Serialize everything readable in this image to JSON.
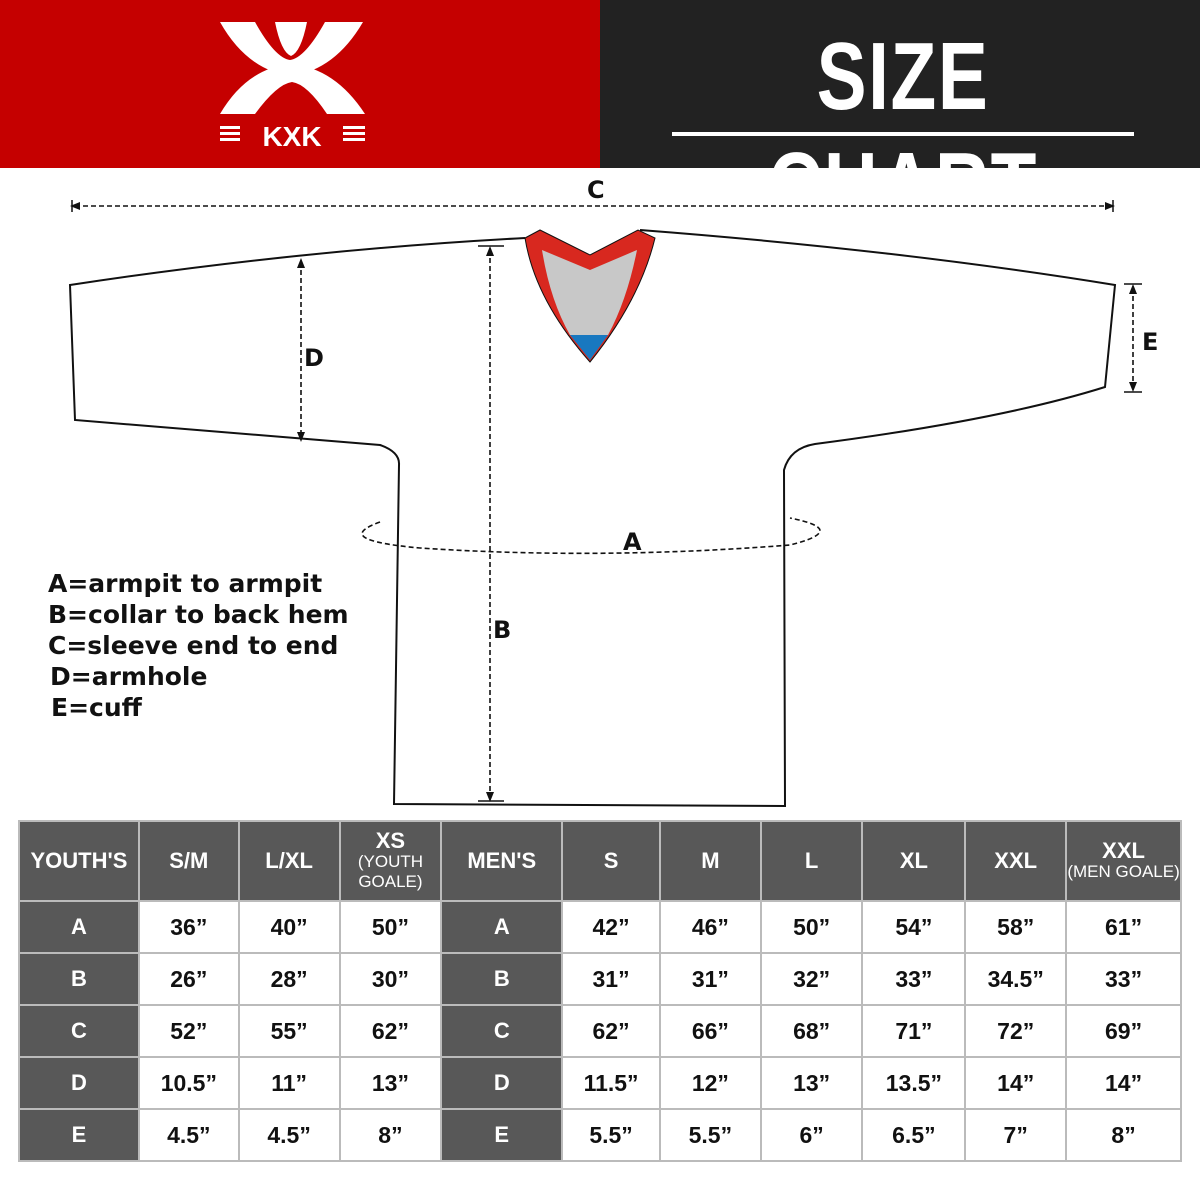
{
  "brand": {
    "logo_text": "KXK",
    "colors": {
      "red": "#c50000",
      "dark": "#222222",
      "table_header": "#585858"
    }
  },
  "title": "SIZE CHART",
  "diagram": {
    "labels": {
      "a": "A",
      "b": "B",
      "c": "C",
      "d": "D",
      "e": "E"
    }
  },
  "legend": [
    "A=armpit to armpit",
    "B=collar to back hem",
    "C=sleeve end to end",
    "D=armhole",
    "E=cuff"
  ],
  "table": {
    "youth": {
      "header": "YOUTH'S",
      "sizes": [
        {
          "main": "S/M",
          "sub": ""
        },
        {
          "main": "L/XL",
          "sub": ""
        },
        {
          "main": "XS",
          "sub": "(YOUTH GOALE)"
        }
      ],
      "rows": [
        {
          "label": "A",
          "values": [
            "36”",
            "40”",
            "50”"
          ]
        },
        {
          "label": "B",
          "values": [
            "26”",
            "28”",
            "30”"
          ]
        },
        {
          "label": "C",
          "values": [
            "52”",
            "55”",
            "62”"
          ]
        },
        {
          "label": "D",
          "values": [
            "10.5”",
            "11”",
            "13”"
          ]
        },
        {
          "label": "E",
          "values": [
            "4.5”",
            "4.5”",
            "8”"
          ]
        }
      ]
    },
    "men": {
      "header": "MEN'S",
      "sizes": [
        {
          "main": "S",
          "sub": ""
        },
        {
          "main": "M",
          "sub": ""
        },
        {
          "main": "L",
          "sub": ""
        },
        {
          "main": "XL",
          "sub": ""
        },
        {
          "main": "XXL",
          "sub": ""
        },
        {
          "main": "XXL",
          "sub": "(MEN GOALE)"
        }
      ],
      "rows": [
        {
          "label": "A",
          "values": [
            "42”",
            "46”",
            "50”",
            "54”",
            "58”",
            "61”"
          ]
        },
        {
          "label": "B",
          "values": [
            "31”",
            "31”",
            "32”",
            "33”",
            "34.5”",
            "33”"
          ]
        },
        {
          "label": "C",
          "values": [
            "62”",
            "66”",
            "68”",
            "71”",
            "72”",
            "69”"
          ]
        },
        {
          "label": "D",
          "values": [
            "11.5”",
            "12”",
            "13”",
            "13.5”",
            "14”",
            "14”"
          ]
        },
        {
          "label": "E",
          "values": [
            "5.5”",
            "5.5”",
            "6”",
            "6.5”",
            "7”",
            "8”"
          ]
        }
      ]
    }
  }
}
